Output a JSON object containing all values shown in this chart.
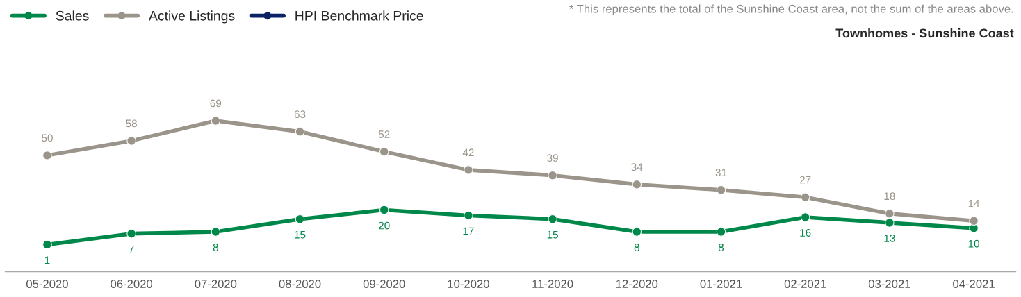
{
  "chart_data": {
    "type": "line",
    "title": "Townhomes - Sunshine Coast",
    "annotations": [
      "* This represents the total of the Sunshine Coast area, not the sum of the areas above."
    ],
    "categories": [
      "05-2020",
      "06-2020",
      "07-2020",
      "08-2020",
      "09-2020",
      "10-2020",
      "11-2020",
      "12-2020",
      "01-2021",
      "02-2021",
      "03-2021",
      "04-2021"
    ],
    "series": [
      {
        "name": "Sales",
        "color": "#00874a",
        "values": [
          1,
          7,
          8,
          15,
          20,
          17,
          15,
          8,
          8,
          16,
          13,
          10
        ]
      },
      {
        "name": "Active Listings",
        "color": "#9b948a",
        "values": [
          50,
          58,
          69,
          63,
          52,
          42,
          39,
          34,
          31,
          27,
          18,
          14
        ]
      },
      {
        "name": "HPI Benchmark Price",
        "color": "#0b2265",
        "values": [
          null,
          null,
          null,
          null,
          null,
          null,
          null,
          null,
          null,
          null,
          null,
          null
        ]
      }
    ],
    "data_labels": true,
    "marker": "circle",
    "line_style": "solid",
    "legend": "top left",
    "grid": false,
    "tick_labels": "x"
  }
}
